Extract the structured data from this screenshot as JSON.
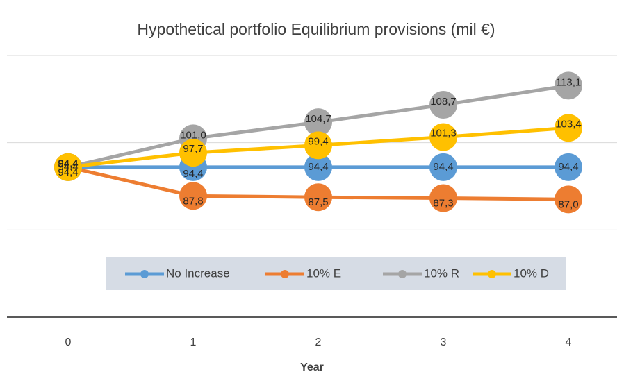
{
  "chart_data": {
    "type": "line",
    "title": "Hypothetical portfolio Equilibrium provisions (mil €)",
    "x_label": "Year",
    "categories": [
      "0",
      "1",
      "2",
      "3",
      "4"
    ],
    "ylim": [
      60,
      120
    ],
    "yticks": [
      60,
      80,
      100,
      120
    ],
    "grid": true,
    "legend": "center",
    "series": [
      {
        "name": "No Increase",
        "color": "#5b9bd5",
        "values": [
          94.4,
          94.4,
          94.4,
          94.4,
          94.4
        ],
        "value_labels": [
          "94,4",
          "94,4",
          "94,4",
          "94,4",
          "94,4"
        ]
      },
      {
        "name": "10% E",
        "color": "#ed7d31",
        "values": [
          94.4,
          87.8,
          87.5,
          87.3,
          87.0
        ],
        "value_labels": [
          "94,4",
          "87,8",
          "87,5",
          "87,3",
          "87,0"
        ]
      },
      {
        "name": "10% R",
        "color": "#a5a5a5",
        "values": [
          94.4,
          101.0,
          104.7,
          108.7,
          113.1
        ],
        "value_labels": [
          "94,4",
          "101,0",
          "104,7",
          "108,7",
          "113,1"
        ]
      },
      {
        "name": "10% D",
        "color": "#ffc000",
        "values": [
          94.4,
          97.7,
          99.4,
          101.3,
          103.4
        ],
        "value_labels": [
          "94,4",
          "97,7",
          "99,4",
          "101,3",
          "103,4"
        ]
      }
    ]
  }
}
